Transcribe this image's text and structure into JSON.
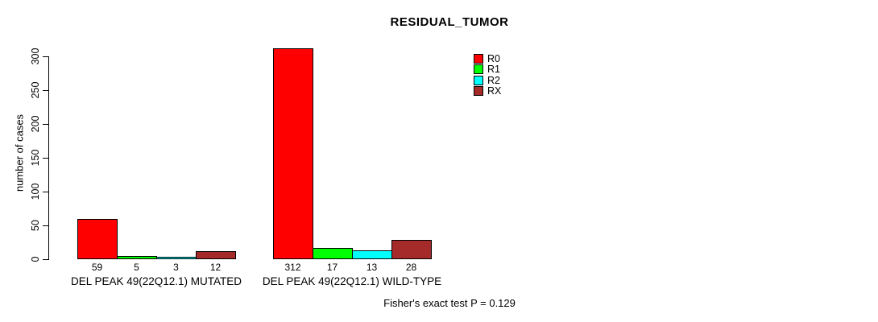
{
  "chart_data": {
    "type": "bar",
    "title": "RESIDUAL_TUMOR",
    "ylabel": "number of cases",
    "xlabel": "",
    "footer": "Fisher's exact test P = 0.129",
    "categories": [
      "DEL PEAK 49(22Q12.1) MUTATED",
      "DEL PEAK 49(22Q12.1) WILD-TYPE"
    ],
    "series": [
      {
        "name": "R0",
        "color": "#ff0000",
        "values": [
          59,
          312
        ]
      },
      {
        "name": "R1",
        "color": "#00ff00",
        "values": [
          5,
          17
        ]
      },
      {
        "name": "R2",
        "color": "#00ffff",
        "values": [
          3,
          13
        ]
      },
      {
        "name": "RX",
        "color": "#a52a2a",
        "values": [
          12,
          28
        ]
      }
    ],
    "bar_value_labels": [
      [
        59,
        5,
        3,
        12
      ],
      [
        312,
        17,
        13,
        28
      ]
    ],
    "yticks": [
      0,
      50,
      100,
      150,
      200,
      250,
      300
    ],
    "ylim": [
      0,
      300
    ],
    "grid": false,
    "legend_position": "top-right",
    "axis_color": "#000000",
    "bar_border_color": "#000000"
  }
}
